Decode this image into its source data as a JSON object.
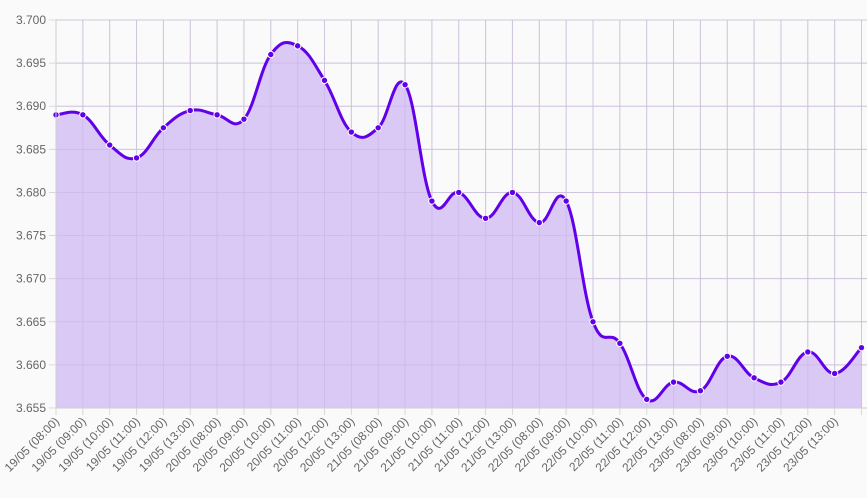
{
  "colors": {
    "background": "#fafafa",
    "line": "#6200ea",
    "fill": "#dac8f5",
    "grid": "#d9d9d9",
    "grid_over_fill": "#c3aee2",
    "point_border": "#ffffff",
    "tick_text": "#666666"
  },
  "chart_data": {
    "type": "area",
    "title": "",
    "xlabel": "",
    "ylabel": "",
    "ylim": [
      3.655,
      3.7
    ],
    "yticks": [
      "3.700",
      "3.695",
      "3.690",
      "3.685",
      "3.680",
      "3.675",
      "3.670",
      "3.665",
      "3.660",
      "3.655"
    ],
    "grid": true,
    "legend": "none",
    "smooth": true,
    "categories": [
      "19/05 (08:00)",
      "19/05 (09:00)",
      "19/05 (10:00)",
      "19/05 (11:00)",
      "19/05 (12:00)",
      "19/05 (13:00)",
      "20/05 (08:00)",
      "20/05 (09:00)",
      "20/05 (10:00)",
      "20/05 (11:00)",
      "20/05 (12:00)",
      "20/05 (13:00)",
      "21/05 (08:00)",
      "21/05 (09:00)",
      "21/05 (10:00)",
      "21/05 (11:00)",
      "21/05 (12:00)",
      "21/05 (13:00)",
      "22/05 (08:00)",
      "22/05 (09:00)",
      "22/05 (10:00)",
      "22/05 (11:00)",
      "22/05 (12:00)",
      "22/05 (13:00)",
      "23/05 (08:00)",
      "23/05 (09:00)",
      "23/05 (10:00)",
      "23/05 (11:00)",
      "23/05 (12:00)",
      "23/05 (13:00)",
      ""
    ],
    "series": [
      {
        "name": "value",
        "values": [
          3.689,
          3.689,
          3.6855,
          3.684,
          3.6875,
          3.6895,
          3.689,
          3.6885,
          3.696,
          3.697,
          3.693,
          3.687,
          3.6875,
          3.6925,
          3.679,
          3.68,
          3.677,
          3.68,
          3.6765,
          3.679,
          3.665,
          3.6625,
          3.656,
          3.658,
          3.657,
          3.661,
          3.6585,
          3.658,
          3.6615,
          3.659,
          3.662
        ]
      }
    ]
  }
}
